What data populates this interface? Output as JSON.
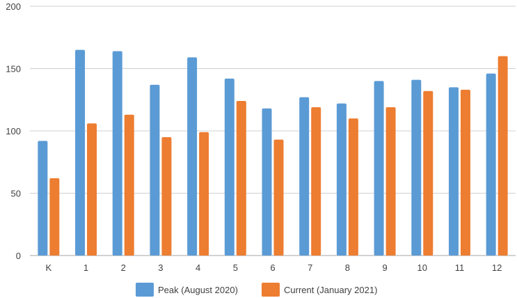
{
  "chart_data": {
    "type": "bar",
    "title": "",
    "xlabel": "",
    "ylabel": "",
    "categories": [
      "K",
      "1",
      "2",
      "3",
      "4",
      "5",
      "6",
      "7",
      "8",
      "9",
      "10",
      "11",
      "12"
    ],
    "series": [
      {
        "name": "Peak (August 2020)",
        "color": "#5b9bd5",
        "values": [
          92,
          165,
          164,
          137,
          159,
          142,
          118,
          127,
          122,
          140,
          141,
          135,
          146
        ]
      },
      {
        "name": "Current (January 2021)",
        "color": "#ed7d31",
        "values": [
          62,
          106,
          113,
          95,
          99,
          124,
          93,
          119,
          110,
          119,
          132,
          133,
          160
        ]
      }
    ],
    "ylim": [
      0,
      200
    ],
    "yticks": [
      "0",
      "50",
      "100",
      "150",
      "200"
    ],
    "grid": true,
    "legend": "bottom"
  }
}
